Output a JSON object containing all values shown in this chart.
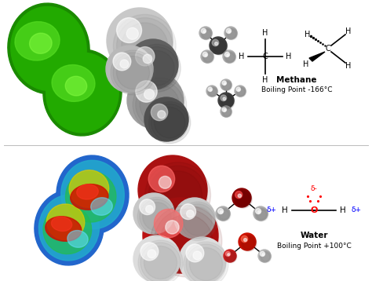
{
  "background_color": "#ffffff",
  "figsize": [
    4.74,
    3.58
  ],
  "dpi": 100,
  "methane_label": "Methane",
  "methane_bp": "Boiling Point -166°C",
  "water_label": "Water",
  "water_bp": "Boiling Point +100°C"
}
